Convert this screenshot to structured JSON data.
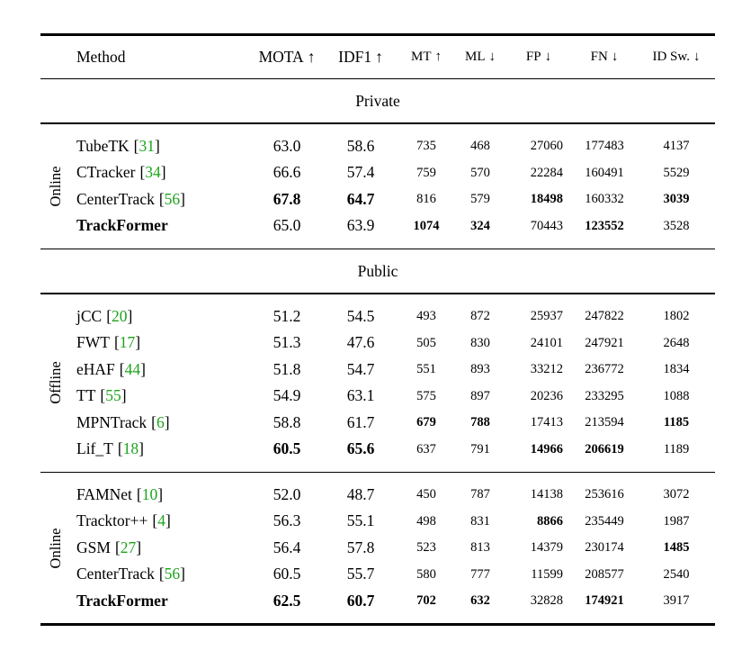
{
  "colors": {
    "citation_green": "#1ca41c",
    "text": "#000000",
    "background": "#ffffff"
  },
  "punctuation": {
    "bracket_open": "[",
    "bracket_close": "]"
  },
  "table": {
    "columns": [
      {
        "label": "Method",
        "arrow": ""
      },
      {
        "label": "MOTA",
        "arrow": "↑"
      },
      {
        "label": "IDF1",
        "arrow": "↑"
      },
      {
        "label": "MT",
        "arrow": "↑"
      },
      {
        "label": "ML",
        "arrow": "↓"
      },
      {
        "label": "FP",
        "arrow": "↓"
      },
      {
        "label": "FN",
        "arrow": "↓"
      },
      {
        "label": "ID Sw.",
        "arrow": "↓"
      }
    ],
    "sections": [
      {
        "title": "Private",
        "groups": [
          {
            "label": "Online",
            "rows": [
              {
                "method": "TubeTK",
                "cite": "31",
                "bold_method": false,
                "values": [
                  "63.0",
                  "58.6",
                  "735",
                  "468",
                  "27060",
                  "177483",
                  "4137"
                ],
                "bold": [
                  false,
                  false,
                  false,
                  false,
                  false,
                  false,
                  false
                ]
              },
              {
                "method": "CTracker",
                "cite": "34",
                "bold_method": false,
                "values": [
                  "66.6",
                  "57.4",
                  "759",
                  "570",
                  "22284",
                  "160491",
                  "5529"
                ],
                "bold": [
                  false,
                  false,
                  false,
                  false,
                  false,
                  false,
                  false
                ]
              },
              {
                "method": "CenterTrack",
                "cite": "56",
                "bold_method": false,
                "values": [
                  "67.8",
                  "64.7",
                  "816",
                  "579",
                  "18498",
                  "160332",
                  "3039"
                ],
                "bold": [
                  true,
                  true,
                  false,
                  false,
                  true,
                  false,
                  true
                ]
              },
              {
                "method": "TrackFormer",
                "cite": "",
                "bold_method": true,
                "values": [
                  "65.0",
                  "63.9",
                  "1074",
                  "324",
                  "70443",
                  "123552",
                  "3528"
                ],
                "bold": [
                  false,
                  false,
                  true,
                  true,
                  false,
                  true,
                  false
                ]
              }
            ]
          }
        ]
      },
      {
        "title": "Public",
        "groups": [
          {
            "label": "Offline",
            "rows": [
              {
                "method": "jCC",
                "cite": "20",
                "bold_method": false,
                "values": [
                  "51.2",
                  "54.5",
                  "493",
                  "872",
                  "25937",
                  "247822",
                  "1802"
                ],
                "bold": [
                  false,
                  false,
                  false,
                  false,
                  false,
                  false,
                  false
                ]
              },
              {
                "method": "FWT",
                "cite": "17",
                "bold_method": false,
                "values": [
                  "51.3",
                  "47.6",
                  "505",
                  "830",
                  "24101",
                  "247921",
                  "2648"
                ],
                "bold": [
                  false,
                  false,
                  false,
                  false,
                  false,
                  false,
                  false
                ]
              },
              {
                "method": "eHAF",
                "cite": "44",
                "bold_method": false,
                "values": [
                  "51.8",
                  "54.7",
                  "551",
                  "893",
                  "33212",
                  "236772",
                  "1834"
                ],
                "bold": [
                  false,
                  false,
                  false,
                  false,
                  false,
                  false,
                  false
                ]
              },
              {
                "method": "TT",
                "cite": "55",
                "bold_method": false,
                "values": [
                  "54.9",
                  "63.1",
                  "575",
                  "897",
                  "20236",
                  "233295",
                  "1088"
                ],
                "bold": [
                  false,
                  false,
                  false,
                  false,
                  false,
                  false,
                  false
                ]
              },
              {
                "method": "MPNTrack",
                "cite": "6",
                "bold_method": false,
                "values": [
                  "58.8",
                  "61.7",
                  "679",
                  "788",
                  "17413",
                  "213594",
                  "1185"
                ],
                "bold": [
                  false,
                  false,
                  true,
                  true,
                  false,
                  false,
                  true
                ]
              },
              {
                "method": "Lif_T",
                "cite": "18",
                "bold_method": false,
                "values": [
                  "60.5",
                  "65.6",
                  "637",
                  "791",
                  "14966",
                  "206619",
                  "1189"
                ],
                "bold": [
                  true,
                  true,
                  false,
                  false,
                  true,
                  true,
                  false
                ]
              }
            ]
          },
          {
            "label": "Online",
            "rows": [
              {
                "method": "FAMNet",
                "cite": "10",
                "bold_method": false,
                "values": [
                  "52.0",
                  "48.7",
                  "450",
                  "787",
                  "14138",
                  "253616",
                  "3072"
                ],
                "bold": [
                  false,
                  false,
                  false,
                  false,
                  false,
                  false,
                  false
                ]
              },
              {
                "method": "Tracktor++",
                "cite": "4",
                "bold_method": false,
                "values": [
                  "56.3",
                  "55.1",
                  "498",
                  "831",
                  "8866",
                  "235449",
                  "1987"
                ],
                "bold": [
                  false,
                  false,
                  false,
                  false,
                  true,
                  false,
                  false
                ]
              },
              {
                "method": "GSM",
                "cite": "27",
                "bold_method": false,
                "values": [
                  "56.4",
                  "57.8",
                  "523",
                  "813",
                  "14379",
                  "230174",
                  "1485"
                ],
                "bold": [
                  false,
                  false,
                  false,
                  false,
                  false,
                  false,
                  true
                ]
              },
              {
                "method": "CenterTrack",
                "cite": "56",
                "bold_method": false,
                "values": [
                  "60.5",
                  "55.7",
                  "580",
                  "777",
                  "11599",
                  "208577",
                  "2540"
                ],
                "bold": [
                  false,
                  false,
                  false,
                  false,
                  false,
                  false,
                  false
                ]
              },
              {
                "method": "TrackFormer",
                "cite": "",
                "bold_method": true,
                "values": [
                  "62.5",
                  "60.7",
                  "702",
                  "632",
                  "32828",
                  "174921",
                  "3917"
                ],
                "bold": [
                  true,
                  true,
                  true,
                  true,
                  false,
                  true,
                  false
                ]
              }
            ]
          }
        ]
      }
    ]
  }
}
